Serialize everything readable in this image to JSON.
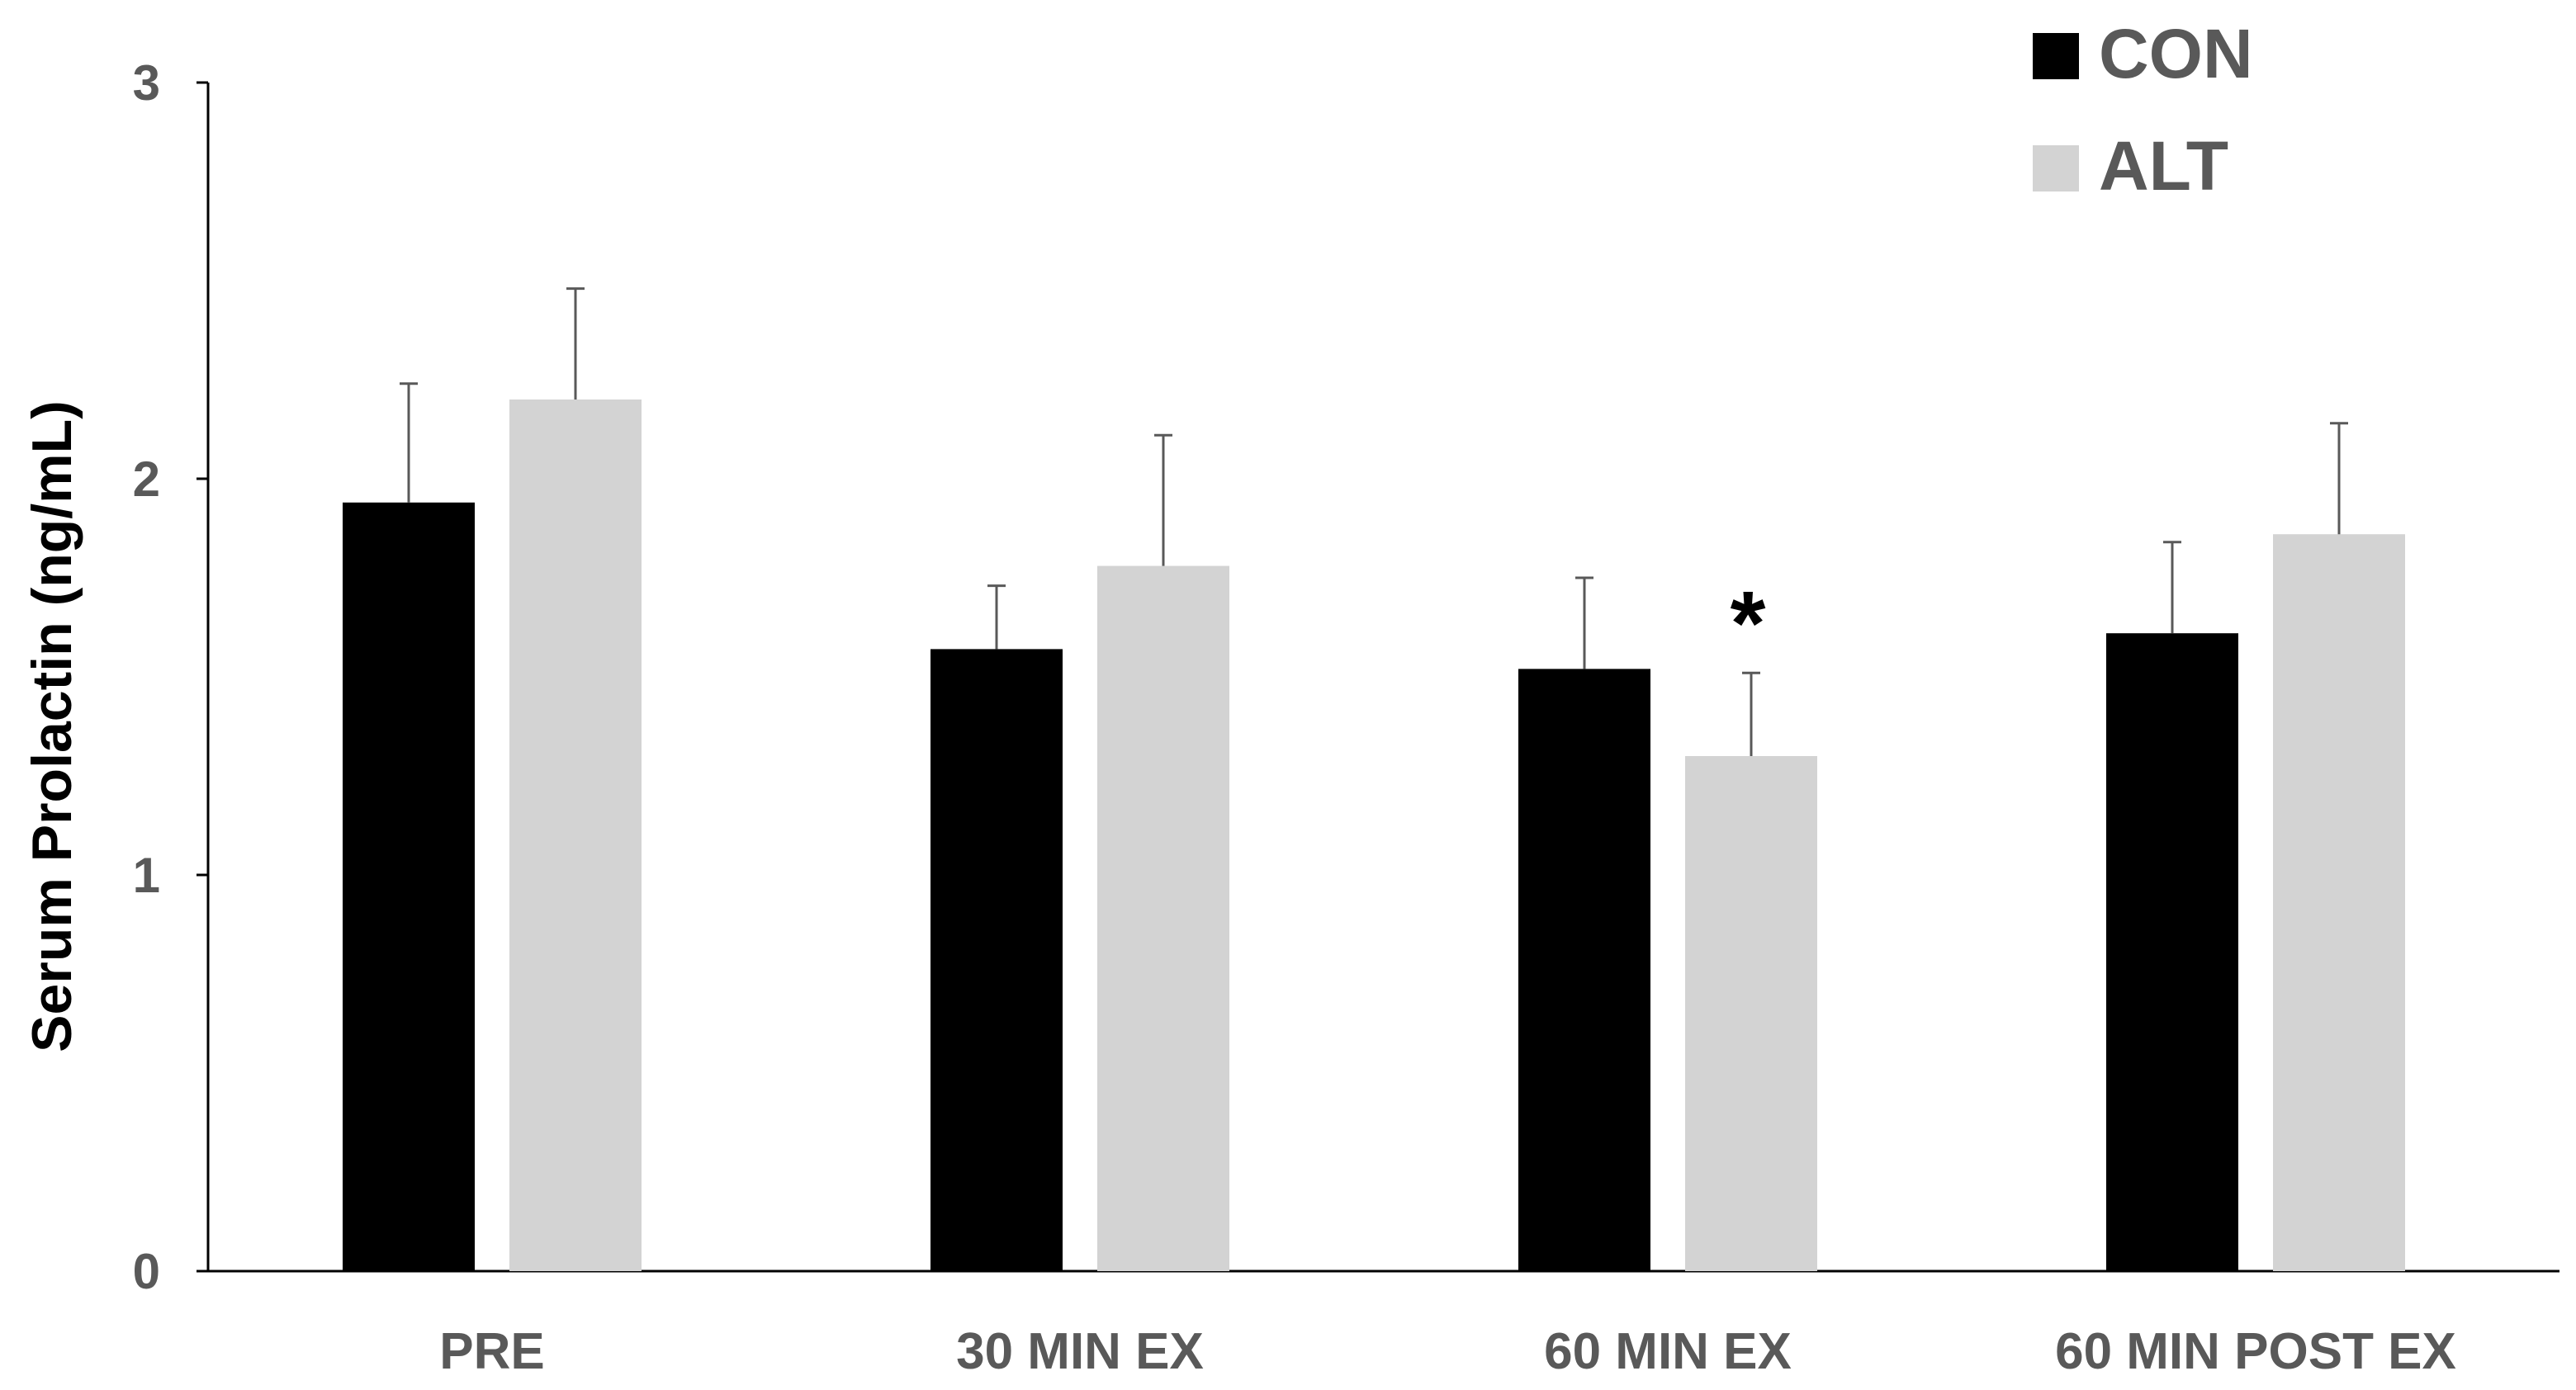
{
  "chart_data": {
    "type": "bar",
    "title": "",
    "xlabel": "",
    "ylabel": "Serum Prolactin (ng/mL)",
    "ylim": [
      0,
      3
    ],
    "yticks": [
      0,
      1,
      2,
      3
    ],
    "grid": false,
    "legend_position": "top-right",
    "categories": [
      "PRE",
      "30 MIN EX",
      "60 MIN EX",
      "60 MIN POST EX"
    ],
    "series": [
      {
        "name": "CON",
        "color": "#000000",
        "values": [
          1.94,
          1.57,
          1.52,
          1.61
        ],
        "error": [
          0.3,
          0.16,
          0.23,
          0.23
        ]
      },
      {
        "name": "ALT",
        "color": "#d3d3d3",
        "values": [
          2.2,
          1.78,
          1.3,
          1.86
        ],
        "error": [
          0.28,
          0.33,
          0.21,
          0.28
        ]
      }
    ],
    "annotations": [
      {
        "text": "*",
        "category": "60 MIN EX",
        "series": "ALT"
      }
    ]
  }
}
